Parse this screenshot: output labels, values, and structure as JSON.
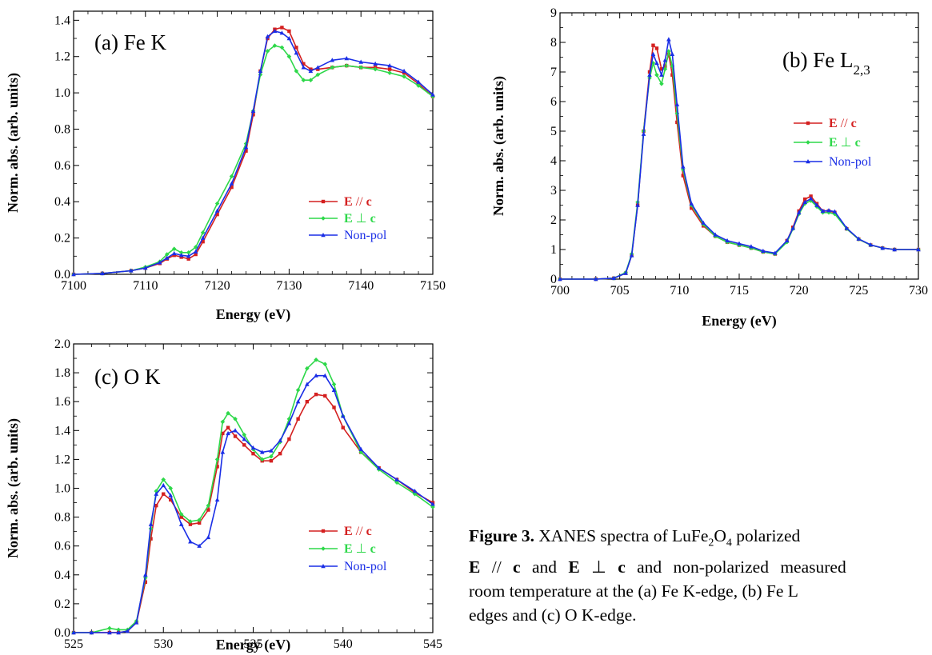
{
  "colors": {
    "e_par_c": "#d42020",
    "e_perp_c": "#2ed84a",
    "non_pol": "#1a2ee6"
  },
  "chart_data": [
    {
      "type": "line",
      "panel_label": "(a) Fe K",
      "xlabel": "Energy (eV)",
      "ylabel": "Norm. abs. (arb. units)",
      "xlim": [
        7100,
        7150
      ],
      "ylim": [
        0.0,
        1.45
      ],
      "xticks": [
        "7100",
        "7110",
        "7120",
        "7130",
        "7140",
        "7150"
      ],
      "yticks": [
        "0.0",
        "0.2",
        "0.4",
        "0.6",
        "0.8",
        "1.0",
        "1.2",
        "1.4"
      ],
      "legend_position": "lower-right",
      "series": [
        {
          "name": "E // c",
          "label_parts": [
            "E",
            "//",
            "c"
          ],
          "color": "#d42020",
          "marker": "square",
          "x": [
            7100,
            7104,
            7108,
            7110,
            7112,
            7113,
            7114,
            7115,
            7116,
            7117,
            7118,
            7120,
            7122,
            7124,
            7125,
            7126,
            7127,
            7128,
            7129,
            7130,
            7131,
            7132,
            7133,
            7134,
            7136,
            7138,
            7140,
            7142,
            7144,
            7146,
            7148,
            7150
          ],
          "y": [
            0.0,
            0.005,
            0.02,
            0.035,
            0.06,
            0.085,
            0.105,
            0.095,
            0.085,
            0.11,
            0.18,
            0.33,
            0.48,
            0.68,
            0.88,
            1.12,
            1.3,
            1.35,
            1.36,
            1.34,
            1.25,
            1.16,
            1.13,
            1.13,
            1.14,
            1.15,
            1.14,
            1.14,
            1.13,
            1.11,
            1.05,
            0.98
          ]
        },
        {
          "name": "E ⊥ c",
          "label_parts": [
            "E",
            "⊥",
            "c"
          ],
          "color": "#2ed84a",
          "marker": "diamond",
          "x": [
            7100,
            7104,
            7108,
            7110,
            7112,
            7113,
            7114,
            7115,
            7116,
            7117,
            7118,
            7120,
            7122,
            7124,
            7125,
            7126,
            7127,
            7128,
            7129,
            7130,
            7131,
            7132,
            7133,
            7134,
            7136,
            7138,
            7140,
            7142,
            7144,
            7146,
            7148,
            7150
          ],
          "y": [
            0.0,
            0.005,
            0.02,
            0.04,
            0.07,
            0.11,
            0.14,
            0.12,
            0.12,
            0.15,
            0.23,
            0.39,
            0.54,
            0.72,
            0.9,
            1.1,
            1.23,
            1.26,
            1.25,
            1.2,
            1.12,
            1.07,
            1.07,
            1.1,
            1.14,
            1.15,
            1.14,
            1.13,
            1.11,
            1.09,
            1.04,
            0.98
          ]
        },
        {
          "name": "Non-pol",
          "label_parts": [
            "",
            "Non-pol",
            ""
          ],
          "color": "#1a2ee6",
          "marker": "triangle",
          "x": [
            7100,
            7104,
            7108,
            7110,
            7112,
            7113,
            7114,
            7115,
            7116,
            7117,
            7118,
            7120,
            7122,
            7124,
            7125,
            7126,
            7127,
            7128,
            7129,
            7130,
            7131,
            7132,
            7133,
            7134,
            7136,
            7138,
            7140,
            7142,
            7144,
            7146,
            7148,
            7150
          ],
          "y": [
            0.0,
            0.005,
            0.02,
            0.035,
            0.065,
            0.09,
            0.115,
            0.105,
            0.1,
            0.125,
            0.2,
            0.35,
            0.5,
            0.7,
            0.9,
            1.12,
            1.31,
            1.34,
            1.33,
            1.3,
            1.22,
            1.14,
            1.12,
            1.14,
            1.18,
            1.19,
            1.17,
            1.16,
            1.15,
            1.12,
            1.06,
            0.99
          ]
        }
      ]
    },
    {
      "type": "line",
      "panel_label": "(b) Fe L",
      "panel_label_sub": "2,3",
      "xlabel": "Energy (eV)",
      "ylabel": "Norm. abs. (arb. units)",
      "xlim": [
        700,
        730
      ],
      "ylim": [
        0,
        9
      ],
      "xticks": [
        "700",
        "705",
        "710",
        "715",
        "720",
        "725",
        "730"
      ],
      "yticks": [
        "0",
        "1",
        "2",
        "3",
        "4",
        "5",
        "6",
        "7",
        "8",
        "9"
      ],
      "legend_position": "center-right",
      "series": [
        {
          "name": "E // c",
          "label_parts": [
            "E",
            "//",
            "c"
          ],
          "color": "#d42020",
          "marker": "square",
          "x": [
            700,
            703,
            704.5,
            705.5,
            706,
            706.5,
            707,
            707.5,
            707.8,
            708.1,
            708.5,
            708.8,
            709.1,
            709.4,
            709.8,
            710.3,
            711,
            712,
            713,
            714,
            715,
            716,
            717,
            718,
            719,
            719.5,
            720,
            720.5,
            721,
            721.5,
            722,
            722.5,
            723,
            724,
            725,
            726,
            727,
            728,
            730
          ],
          "y": [
            0,
            0,
            0.03,
            0.2,
            0.8,
            2.5,
            5.0,
            7.0,
            7.9,
            7.8,
            7.1,
            7.2,
            7.6,
            6.9,
            5.3,
            3.5,
            2.4,
            1.8,
            1.45,
            1.25,
            1.15,
            1.05,
            0.92,
            0.85,
            1.3,
            1.75,
            2.3,
            2.7,
            2.8,
            2.55,
            2.3,
            2.3,
            2.25,
            1.7,
            1.35,
            1.15,
            1.05,
            1.0,
            1.0
          ]
        },
        {
          "name": "E ⊥ c",
          "label_parts": [
            "E",
            "⊥",
            "c"
          ],
          "color": "#2ed84a",
          "marker": "diamond",
          "x": [
            700,
            703,
            704.5,
            705.5,
            706,
            706.5,
            707,
            707.5,
            707.8,
            708.1,
            708.5,
            708.8,
            709.1,
            709.4,
            709.8,
            710.3,
            711,
            712,
            713,
            714,
            715,
            716,
            717,
            718,
            719,
            719.5,
            720,
            720.5,
            721,
            721.5,
            722,
            722.5,
            723,
            724,
            725,
            726,
            727,
            728,
            730
          ],
          "y": [
            0,
            0,
            0.03,
            0.22,
            0.85,
            2.6,
            5.0,
            6.8,
            7.3,
            6.9,
            6.6,
            7.1,
            7.7,
            7.2,
            5.6,
            3.7,
            2.5,
            1.85,
            1.45,
            1.25,
            1.15,
            1.05,
            0.92,
            0.85,
            1.25,
            1.7,
            2.2,
            2.55,
            2.65,
            2.45,
            2.25,
            2.25,
            2.2,
            1.7,
            1.35,
            1.15,
            1.05,
            1.0,
            1.0
          ]
        },
        {
          "name": "Non-pol",
          "label_parts": [
            "",
            "Non-pol",
            ""
          ],
          "color": "#1a2ee6",
          "marker": "triangle",
          "x": [
            700,
            703,
            704.5,
            705.5,
            706,
            706.5,
            707,
            707.5,
            707.8,
            708.1,
            708.5,
            708.8,
            709.1,
            709.4,
            709.8,
            710.3,
            711,
            712,
            713,
            714,
            715,
            716,
            717,
            718,
            719,
            719.5,
            720,
            720.5,
            721,
            721.5,
            722,
            722.5,
            723,
            724,
            725,
            726,
            727,
            728,
            730
          ],
          "y": [
            0,
            0,
            0.03,
            0.2,
            0.8,
            2.5,
            4.9,
            6.9,
            7.6,
            7.3,
            6.9,
            7.4,
            8.1,
            7.6,
            5.9,
            3.8,
            2.55,
            1.9,
            1.5,
            1.3,
            1.2,
            1.1,
            0.95,
            0.88,
            1.3,
            1.72,
            2.25,
            2.6,
            2.72,
            2.5,
            2.3,
            2.32,
            2.28,
            1.72,
            1.36,
            1.16,
            1.05,
            1.0,
            1.0
          ]
        }
      ]
    },
    {
      "type": "line",
      "panel_label": "(c) O K",
      "xlabel": "Energy (eV)",
      "ylabel": "Norm. abs. (arb. units)",
      "xlim": [
        525,
        545
      ],
      "ylim": [
        0.0,
        2.0
      ],
      "xticks": [
        "525",
        "530",
        "535",
        "540",
        "545"
      ],
      "yticks": [
        "0.0",
        "0.2",
        "0.4",
        "0.6",
        "0.8",
        "1.0",
        "1.2",
        "1.4",
        "1.6",
        "1.8",
        "2.0"
      ],
      "legend_position": "lower-right",
      "series": [
        {
          "name": "E // c",
          "label_parts": [
            "E",
            "//",
            "c"
          ],
          "color": "#d42020",
          "marker": "square",
          "x": [
            525,
            526,
            527,
            527.5,
            528,
            528.5,
            529,
            529.3,
            529.6,
            530,
            530.4,
            531,
            531.5,
            532,
            532.5,
            533,
            533.3,
            533.6,
            534,
            534.5,
            535,
            535.5,
            536,
            536.5,
            537,
            537.5,
            538,
            538.5,
            539,
            539.5,
            540,
            541,
            542,
            543,
            544,
            545
          ],
          "y": [
            0,
            0,
            0,
            0,
            0.01,
            0.07,
            0.35,
            0.65,
            0.88,
            0.96,
            0.92,
            0.8,
            0.75,
            0.76,
            0.85,
            1.15,
            1.38,
            1.42,
            1.36,
            1.3,
            1.24,
            1.19,
            1.19,
            1.24,
            1.34,
            1.48,
            1.6,
            1.65,
            1.64,
            1.56,
            1.42,
            1.25,
            1.14,
            1.06,
            0.97,
            0.9
          ]
        },
        {
          "name": "E ⊥ c",
          "label_parts": [
            "E",
            "⊥",
            "c"
          ],
          "color": "#2ed84a",
          "marker": "diamond",
          "x": [
            525,
            526,
            527,
            527.5,
            528,
            528.5,
            529,
            529.3,
            529.6,
            530,
            530.4,
            531,
            531.5,
            532,
            532.5,
            533,
            533.3,
            533.6,
            534,
            534.5,
            535,
            535.5,
            536,
            536.5,
            537,
            537.5,
            538,
            538.5,
            539,
            539.5,
            540,
            541,
            542,
            543,
            544,
            545
          ],
          "y": [
            0,
            0,
            0.03,
            0.02,
            0.02,
            0.08,
            0.38,
            0.72,
            0.98,
            1.06,
            1.0,
            0.82,
            0.77,
            0.78,
            0.88,
            1.2,
            1.46,
            1.52,
            1.48,
            1.37,
            1.27,
            1.2,
            1.22,
            1.32,
            1.48,
            1.68,
            1.83,
            1.89,
            1.86,
            1.72,
            1.5,
            1.25,
            1.13,
            1.04,
            0.96,
            0.87
          ]
        },
        {
          "name": "Non-pol",
          "label_parts": [
            "",
            "Non-pol",
            ""
          ],
          "color": "#1a2ee6",
          "marker": "triangle",
          "x": [
            525,
            526,
            527,
            527.5,
            528,
            528.5,
            529,
            529.3,
            529.6,
            530,
            530.4,
            531,
            531.5,
            532,
            532.5,
            533,
            533.3,
            533.6,
            534,
            534.5,
            535,
            535.5,
            536,
            536.5,
            537,
            537.5,
            538,
            538.5,
            539,
            539.5,
            540,
            541,
            542,
            543,
            544,
            545
          ],
          "y": [
            0,
            0,
            0,
            0,
            0.01,
            0.07,
            0.4,
            0.75,
            0.96,
            1.02,
            0.95,
            0.75,
            0.63,
            0.6,
            0.66,
            0.92,
            1.25,
            1.38,
            1.4,
            1.34,
            1.28,
            1.25,
            1.26,
            1.33,
            1.45,
            1.6,
            1.72,
            1.78,
            1.78,
            1.68,
            1.5,
            1.27,
            1.14,
            1.06,
            0.98,
            0.89
          ]
        }
      ]
    }
  ],
  "caption": {
    "label": "Figure 3.",
    "text_1": " XANES spectra of LuFe",
    "sub_1": "2",
    "text_2": "O",
    "sub_2": "4",
    "text_3": " polarized",
    "line2_bold_1": "E",
    "line2_text_1": " // ",
    "line2_bold_2": "c",
    "line2_text_2": " and ",
    "line2_bold_3": "E",
    "line2_text_3": " ⊥ ",
    "line2_bold_4": "c",
    "line2_text_4": " and non-polarized measured",
    "line3": "room temperature at the (a) Fe K-edge, (b) Fe L",
    "line4": "edges and (c) O K-edge."
  }
}
